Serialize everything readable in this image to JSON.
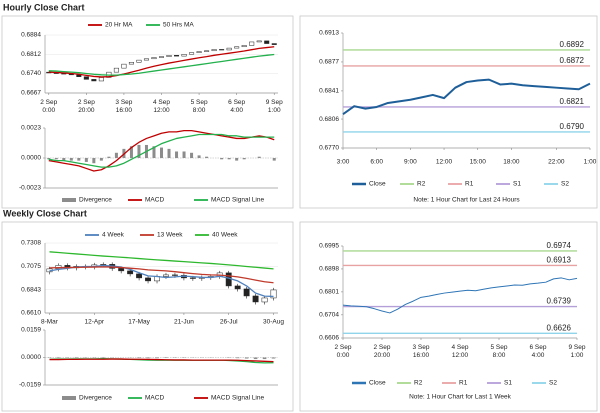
{
  "headings": [
    "Hourly Close Chart",
    "Weekly Close Chart"
  ],
  "chart_data": [
    {
      "type": "candlestick",
      "legend": "top",
      "grid": true,
      "categories": [
        [
          "2 Sep",
          "0:00"
        ],
        null,
        null,
        null,
        null,
        [
          "2 Sep",
          "20:00"
        ],
        null,
        null,
        null,
        null,
        [
          "3 Sep",
          "16:00"
        ],
        null,
        null,
        null,
        null,
        [
          "4 Sep",
          "12:00"
        ],
        null,
        null,
        null,
        null,
        [
          "5 Sep",
          "8:00"
        ],
        null,
        null,
        null,
        null,
        [
          "6 Sep",
          "4:00"
        ],
        null,
        null,
        null,
        null,
        [
          "9 Sep",
          "1:00"
        ]
      ],
      "open": [
        0.6745,
        0.6742,
        0.674,
        0.6738,
        0.6735,
        0.6728,
        0.6718,
        0.6712,
        0.6725,
        0.6745,
        0.676,
        0.6775,
        0.6782,
        0.679,
        0.6795,
        0.68,
        0.6803,
        0.6808,
        0.6805,
        0.6812,
        0.6818,
        0.6822,
        0.6825,
        0.683,
        0.6828,
        0.6835,
        0.684,
        0.6845,
        0.6858,
        0.6862,
        0.6852
      ],
      "close": [
        0.6742,
        0.674,
        0.6738,
        0.6735,
        0.6728,
        0.6718,
        0.6712,
        0.6725,
        0.6745,
        0.676,
        0.6775,
        0.6782,
        0.679,
        0.6795,
        0.68,
        0.6803,
        0.6808,
        0.6805,
        0.6812,
        0.6818,
        0.6822,
        0.6825,
        0.683,
        0.6828,
        0.6835,
        0.684,
        0.6845,
        0.6858,
        0.6862,
        0.6852,
        0.6848
      ],
      "series": [
        {
          "name": "20 Hr MA",
          "color": "#c00000",
          "values": [
            0.6745,
            0.6744,
            0.6742,
            0.674,
            0.6737,
            0.6733,
            0.6729,
            0.6727,
            0.6728,
            0.6732,
            0.6738,
            0.6745,
            0.6752,
            0.676,
            0.6767,
            0.6773,
            0.6779,
            0.6784,
            0.6789,
            0.6794,
            0.6799,
            0.6803,
            0.6808,
            0.6812,
            0.6816,
            0.682,
            0.6824,
            0.6829,
            0.6834,
            0.6837,
            0.684
          ]
        },
        {
          "name": "50 Hrs MA",
          "color": "#22b14c",
          "values": [
            0.675,
            0.6749,
            0.6747,
            0.6745,
            0.6743,
            0.674,
            0.6737,
            0.6735,
            0.6734,
            0.6734,
            0.6736,
            0.6738,
            0.6741,
            0.6745,
            0.6749,
            0.6753,
            0.6757,
            0.6761,
            0.6765,
            0.6769,
            0.6773,
            0.6777,
            0.6781,
            0.6785,
            0.6789,
            0.6793,
            0.6797,
            0.6801,
            0.6805,
            0.6808,
            0.6811
          ]
        }
      ],
      "ylim": [
        0.6667,
        0.6884
      ],
      "yticks": [
        0.6884,
        0.6812,
        {
          "value": 0.674,
          "label": "0.6740"
        },
        0.6667
      ]
    },
    {
      "type": "macd",
      "legend": "bottom",
      "series": [
        {
          "name": "Divergence",
          "color": "#8c8c8c",
          "kind": "bar",
          "values": [
            -0.0001,
            -0.0001,
            -0.0002,
            -0.0002,
            -0.0002,
            -0.0003,
            -0.0004,
            -0.0002,
            0.0001,
            0.0004,
            0.0007,
            0.0009,
            0.001,
            0.001,
            0.0009,
            0.0008,
            0.0007,
            0.0005,
            0.0005,
            0.0004,
            0.0002,
            0.0001,
            0.0,
            -0.0001,
            -0.0001,
            -0.0002,
            -0.0001,
            0.0,
            0.0001,
            0.0,
            -0.0002
          ]
        },
        {
          "name": "MACD",
          "color": "#c00000",
          "kind": "line",
          "values": [
            -0.0002,
            -0.0003,
            -0.0004,
            -0.0005,
            -0.0006,
            -0.0008,
            -0.001,
            -0.0009,
            -0.0006,
            -0.0002,
            0.0003,
            0.0008,
            0.0012,
            0.0015,
            0.0017,
            0.0019,
            0.002,
            0.002,
            0.0021,
            0.0021,
            0.002,
            0.0019,
            0.0018,
            0.0017,
            0.0016,
            0.0015,
            0.0015,
            0.0016,
            0.0017,
            0.0016,
            0.0014
          ]
        },
        {
          "name": "MACD Signal Line",
          "color": "#22b14c",
          "kind": "line",
          "values": [
            -0.0001,
            -0.0002,
            -0.0002,
            -0.0003,
            -0.0004,
            -0.0005,
            -0.0006,
            -0.0007,
            -0.0007,
            -0.0006,
            -0.0004,
            -0.0001,
            0.0002,
            0.0005,
            0.0008,
            0.0011,
            0.0013,
            0.0015,
            0.0016,
            0.0017,
            0.0018,
            0.0018,
            0.0018,
            0.0018,
            0.0017,
            0.0017,
            0.0016,
            0.0016,
            0.0016,
            0.0016,
            0.0016
          ]
        }
      ],
      "ylim": [
        -0.0023,
        0.0023
      ],
      "yticks": [
        0.0023,
        {
          "value": 0,
          "label": "0.0000"
        },
        -0.0023
      ]
    },
    {
      "type": "levels",
      "legend": "bottom",
      "note": "Note: 1 Hour Chart for Last 24 Hours",
      "categories": [
        "3:00",
        null,
        null,
        "6:00",
        null,
        null,
        "9:00",
        null,
        null,
        "12:00",
        null,
        null,
        "15:00",
        null,
        null,
        "18:00",
        null,
        null,
        null,
        "22:00",
        null,
        null,
        "1:00"
      ],
      "series": [
        {
          "name": "Close",
          "color": "#1f5f99",
          "values": [
            0.6812,
            0.6822,
            0.6819,
            0.6821,
            0.6826,
            0.6828,
            0.683,
            0.6833,
            0.6836,
            0.6832,
            0.6845,
            0.6852,
            0.6854,
            0.6855,
            0.6849,
            0.685,
            0.6848,
            0.6847,
            0.6846,
            0.6845,
            0.6844,
            0.6843,
            0.685
          ]
        }
      ],
      "levels": [
        {
          "name": "R2",
          "color": "#a9d88f",
          "value": 0.6892
        },
        {
          "name": "R1",
          "color": "#e8a2a2",
          "value": 0.6872
        },
        {
          "name": "S1",
          "color": "#b59fd8",
          "value": 0.6821
        },
        {
          "name": "S2",
          "color": "#8fd4ea",
          "value": 0.679,
          "value_label": "0.6790"
        }
      ],
      "ylim": [
        0.677,
        0.6913
      ],
      "yticks": [
        0.6913,
        0.6877,
        0.6841,
        0.6806,
        {
          "value": 0.677,
          "label": "0.6770"
        }
      ]
    },
    {
      "type": "candlestick",
      "legend": "top",
      "grid": true,
      "categories": [
        "8-Mar",
        null,
        null,
        null,
        null,
        "12-Apr",
        null,
        null,
        null,
        null,
        "17-May",
        null,
        null,
        null,
        null,
        "21-Jun",
        null,
        null,
        null,
        null,
        "26-Jul",
        null,
        null,
        null,
        null,
        "30-Aug"
      ],
      "open": [
        0.702,
        0.705,
        0.7085,
        0.706,
        0.7075,
        0.707,
        0.709,
        0.7095,
        0.7055,
        0.703,
        0.7,
        0.696,
        0.693,
        0.6975,
        0.699,
        0.6985,
        0.696,
        0.6955,
        0.6965,
        0.6975,
        0.701,
        0.688,
        0.685,
        0.678,
        0.672,
        0.676
      ],
      "high": [
        0.707,
        0.7105,
        0.7105,
        0.7095,
        0.7095,
        0.711,
        0.7115,
        0.7115,
        0.7075,
        0.705,
        0.702,
        0.698,
        0.6995,
        0.701,
        0.701,
        0.7005,
        0.698,
        0.6985,
        0.6995,
        0.703,
        0.703,
        0.69,
        0.687,
        0.68,
        0.678,
        0.686
      ],
      "low": [
        0.6995,
        0.7025,
        0.7035,
        0.7035,
        0.7045,
        0.7045,
        0.7065,
        0.703,
        0.7005,
        0.6975,
        0.6935,
        0.6905,
        0.6905,
        0.695,
        0.696,
        0.6935,
        0.693,
        0.693,
        0.694,
        0.695,
        0.6855,
        0.6825,
        0.6755,
        0.6695,
        0.6695,
        0.6735
      ],
      "close": [
        0.705,
        0.7085,
        0.706,
        0.7075,
        0.707,
        0.709,
        0.7095,
        0.7055,
        0.703,
        0.7,
        0.696,
        0.693,
        0.6975,
        0.699,
        0.6985,
        0.696,
        0.6955,
        0.6965,
        0.6975,
        0.701,
        0.688,
        0.685,
        0.678,
        0.672,
        0.676,
        0.684
      ],
      "series": [
        {
          "name": "4 Week",
          "color": "#4f81bd",
          "values": [
            0.703,
            0.7045,
            0.7055,
            0.7068,
            0.7073,
            0.7074,
            0.7083,
            0.7078,
            0.7068,
            0.7045,
            0.7011,
            0.698,
            0.6974,
            0.6964,
            0.697,
            0.6978,
            0.6973,
            0.6966,
            0.6964,
            0.6976,
            0.6958,
            0.693,
            0.688,
            0.6808,
            0.6778,
            0.6775
          ]
        },
        {
          "name": "13 Week",
          "color": "#c0392b",
          "values": [
            0.706,
            0.7062,
            0.7063,
            0.7065,
            0.7066,
            0.7068,
            0.707,
            0.7068,
            0.7063,
            0.7057,
            0.705,
            0.704,
            0.7035,
            0.703,
            0.7022,
            0.7012,
            0.7003,
            0.6995,
            0.699,
            0.6988,
            0.698,
            0.697,
            0.6955,
            0.6938,
            0.6922,
            0.6912
          ]
        },
        {
          "name": "40 Week",
          "color": "#2eb82e",
          "values": [
            0.722,
            0.7213,
            0.7206,
            0.7199,
            0.7192,
            0.7185,
            0.7178,
            0.7172,
            0.7166,
            0.716,
            0.7153,
            0.7146,
            0.714,
            0.7134,
            0.7128,
            0.7122,
            0.7116,
            0.711,
            0.7104,
            0.7097,
            0.709,
            0.7082,
            0.7074,
            0.7066,
            0.7058,
            0.705
          ]
        }
      ],
      "ylim": [
        0.661,
        0.7308
      ],
      "yticks": [
        0.7308,
        0.7075,
        0.6843,
        {
          "value": 0.661,
          "label": "0.6610"
        }
      ]
    },
    {
      "type": "macd",
      "legend": "bottom",
      "series": [
        {
          "name": "Divergence",
          "color": "#8c8c8c",
          "kind": "bar",
          "values": [
            0.0002,
            0.0003,
            0.0002,
            0.0003,
            0.0002,
            0.0002,
            0.0003,
            0.0001,
            0.0,
            -0.0001,
            -0.0003,
            -0.0004,
            -0.0004,
            -0.0003,
            -0.0002,
            -0.0002,
            -0.0001,
            -0.0001,
            -0.0001,
            0.0,
            -0.0002,
            -0.0004,
            -0.0006,
            -0.0009,
            -0.0009,
            -0.0006
          ]
        },
        {
          "name": "MACD",
          "color": "#22b14c",
          "kind": "line",
          "values": [
            -0.001,
            -0.0009,
            -0.0009,
            -0.0008,
            -0.0008,
            -0.0008,
            -0.0007,
            -0.0008,
            -0.0009,
            -0.0011,
            -0.0013,
            -0.0015,
            -0.0016,
            -0.0016,
            -0.0016,
            -0.0016,
            -0.0016,
            -0.0016,
            -0.0016,
            -0.0015,
            -0.0017,
            -0.002,
            -0.0024,
            -0.0029,
            -0.0031,
            -0.003
          ]
        },
        {
          "name": "MACD Signal Line",
          "color": "#c00000",
          "kind": "line",
          "values": [
            -0.0012,
            -0.0012,
            -0.0011,
            -0.0011,
            -0.001,
            -0.001,
            -0.001,
            -0.0009,
            -0.0009,
            -0.001,
            -0.001,
            -0.0011,
            -0.0012,
            -0.0013,
            -0.0014,
            -0.0014,
            -0.0015,
            -0.0015,
            -0.0015,
            -0.0015,
            -0.0015,
            -0.0016,
            -0.0018,
            -0.002,
            -0.0022,
            -0.0024
          ]
        }
      ],
      "ylim": [
        -0.0159,
        0.0159
      ],
      "yticks": [
        0.0159,
        {
          "value": 0,
          "label": "0.0000"
        },
        -0.0159
      ]
    },
    {
      "type": "levels",
      "legend": "bottom",
      "note": "Note: 1 Hour Chart for Last 1 Week",
      "categories": [
        [
          "2 Sep",
          "0:00"
        ],
        null,
        null,
        null,
        null,
        [
          "2 Sep",
          "20:00"
        ],
        null,
        null,
        null,
        null,
        [
          "3 Sep",
          "16:00"
        ],
        null,
        null,
        null,
        null,
        [
          "4 Sep",
          "12:00"
        ],
        null,
        null,
        null,
        null,
        [
          "5 Sep",
          "8:00"
        ],
        null,
        null,
        null,
        null,
        [
          "6 Sep",
          "4:00"
        ],
        null,
        null,
        null,
        null,
        [
          "9 Sep",
          "1:00"
        ]
      ],
      "series": [
        {
          "name": "Close",
          "color": "#2e75b6",
          "values": [
            0.6745,
            0.6742,
            0.674,
            0.6738,
            0.673,
            0.672,
            0.6712,
            0.6728,
            0.6748,
            0.6762,
            0.6778,
            0.6783,
            0.679,
            0.6796,
            0.68,
            0.6804,
            0.6808,
            0.6806,
            0.6812,
            0.6818,
            0.6822,
            0.6826,
            0.683,
            0.6829,
            0.6835,
            0.6838,
            0.6842,
            0.6856,
            0.686,
            0.6852,
            0.6858
          ]
        }
      ],
      "levels": [
        {
          "name": "R2",
          "color": "#a9d88f",
          "value": 0.6974
        },
        {
          "name": "R1",
          "color": "#e8a2a2",
          "value": 0.6913
        },
        {
          "name": "S1",
          "color": "#b59fd8",
          "value": 0.6739
        },
        {
          "name": "S2",
          "color": "#8fd4ea",
          "value": 0.6626
        }
      ],
      "ylim": [
        0.6606,
        0.6995
      ],
      "yticks": [
        0.6995,
        0.6898,
        0.6801,
        0.6704,
        0.6606
      ]
    }
  ]
}
